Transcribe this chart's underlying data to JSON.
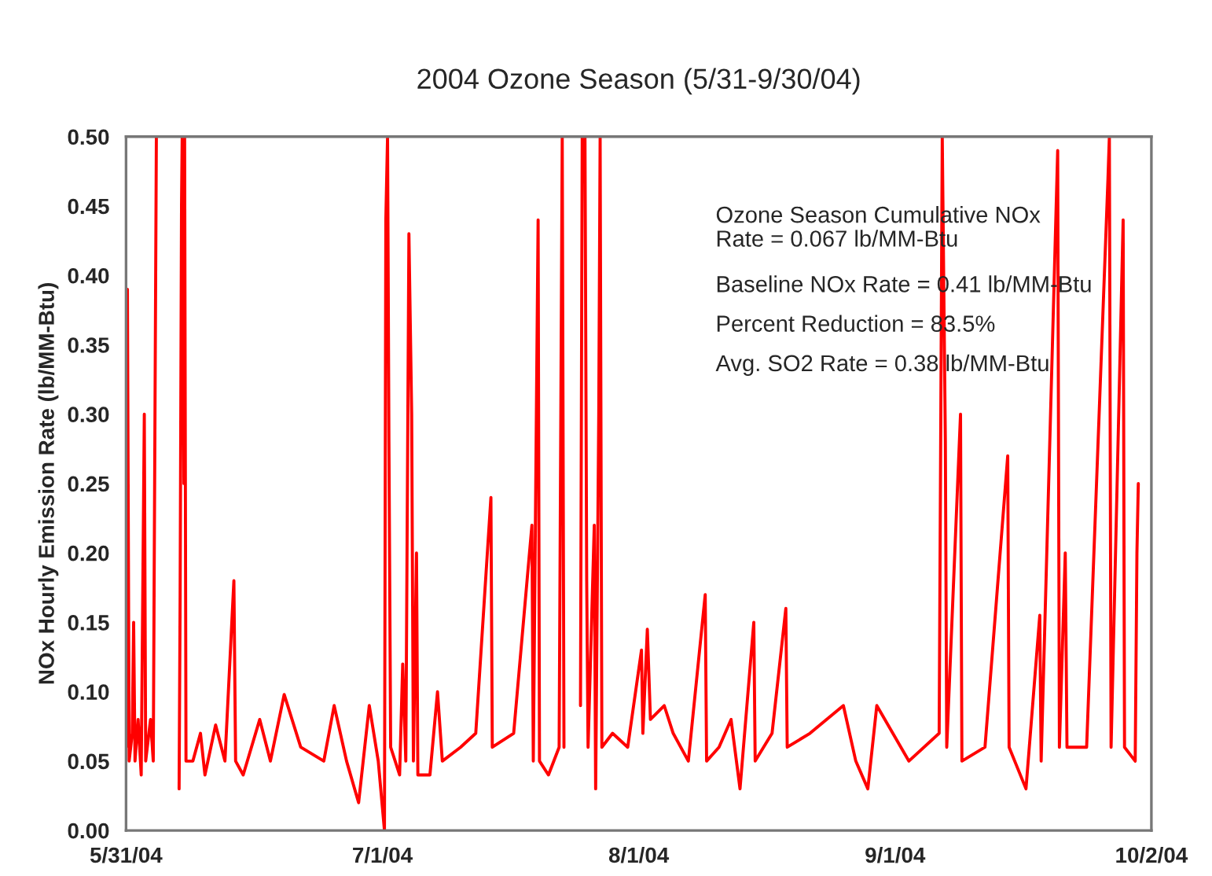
{
  "chart_data": {
    "type": "line",
    "title": "2004 Ozone Season (5/31-9/30/04)",
    "ylabel": "NOx Hourly Emission Rate (lb/MM-Btu)",
    "annotations": [
      "Ozone Season Cumulative NOx\nRate = 0.067 lb/MM-Btu",
      "Baseline NOx Rate = 0.41 lb/MM-Btu",
      "Percent Reduction = 83.5%",
      "Avg. SO2 Rate = 0.38 lb/MM-Btu"
    ],
    "xlim": [
      "2004-05-31",
      "2004-10-02"
    ],
    "xticks": [
      {
        "value": "2004-05-31",
        "label": "5/31/04"
      },
      {
        "value": "2004-07-01",
        "label": "7/1/04"
      },
      {
        "value": "2004-08-01",
        "label": "8/1/04"
      },
      {
        "value": "2004-09-01",
        "label": "9/1/04"
      },
      {
        "value": "2004-10-02",
        "label": "10/2/04"
      }
    ],
    "ylim": [
      0,
      0.5
    ],
    "yticks": [
      {
        "value": 0,
        "label": "0.00"
      },
      {
        "value": 0.05,
        "label": "0.05"
      },
      {
        "value": 0.1,
        "label": "0.10"
      },
      {
        "value": 0.15,
        "label": "0.15"
      },
      {
        "value": 0.2,
        "label": "0.20"
      },
      {
        "value": 0.25,
        "label": "0.25"
      },
      {
        "value": 0.3,
        "label": "0.30"
      },
      {
        "value": 0.35,
        "label": "0.35"
      },
      {
        "value": 0.4,
        "label": "0.40"
      },
      {
        "value": 0.45,
        "label": "0.45"
      },
      {
        "value": 0.5,
        "label": "0.50"
      }
    ],
    "grid": false,
    "legend": false,
    "marker": "none",
    "line_style": "solid",
    "series": [
      {
        "color": "#ff0000",
        "x": [
          "2004-05-31T00:00",
          "2004-05-31T04:00",
          "2004-05-31T09:00",
          "2004-05-31T18:00",
          "2004-05-31T22:00",
          "2004-06-01T02:00",
          "2004-06-01T11:00",
          "2004-06-01T20:00",
          "2004-06-02T05:00",
          "2004-06-02T09:00",
          "2004-06-02T23:00",
          "2004-06-03T07:00",
          "2004-06-03T16:00",
          "2004-06-04T00:00",
          "2004-06-06T10:00",
          "2004-06-06T13:00",
          "2004-06-06T17:00",
          "2004-06-06T19:00",
          "2004-06-07T00:00",
          "2004-06-07T02:00",
          "2004-06-07T06:00",
          "2004-06-08T02:00",
          "2004-06-09T00:00",
          "2004-06-09T13:00",
          "2004-06-10T20:00",
          "2004-06-11T23:00",
          "2004-06-13T01:00",
          "2004-06-13T06:00",
          "2004-06-14T04:00",
          "2004-06-16T04:00",
          "2004-06-17T11:00",
          "2004-06-19T03:00",
          "2004-06-21T03:00",
          "2004-06-23T22:00",
          "2004-06-25T04:00",
          "2004-06-26T16:00",
          "2004-06-28T03:00",
          "2004-06-29T10:00",
          "2004-06-30T12:00",
          "2004-07-01T06:00",
          "2004-07-01T10:00",
          "2004-07-01T15:00",
          "2004-07-01T19:00",
          "2004-07-02T00:00",
          "2004-07-03T02:00",
          "2004-07-03T11:00",
          "2004-07-03T20:00",
          "2004-07-04T05:00",
          "2004-07-04T13:00",
          "2004-07-04T18:00",
          "2004-07-05T03:00",
          "2004-07-05T07:00",
          "2004-07-06T18:00",
          "2004-07-07T16:00",
          "2004-07-08T06:00",
          "2004-07-10T11:00",
          "2004-07-12T07:00",
          "2004-07-14T03:00",
          "2004-07-14T07:00",
          "2004-07-16T21:00",
          "2004-07-19T02:00",
          "2004-07-19T06:00",
          "2004-07-19T20:00",
          "2004-07-20T00:00",
          "2004-07-21T02:00",
          "2004-07-22T09:00",
          "2004-07-22T18:00",
          "2004-07-22T23:00",
          "2004-07-24T00:00",
          "2004-07-24T23:00",
          "2004-07-25T04:00",
          "2004-07-25T12:00",
          "2004-07-25T17:00",
          "2004-07-25T21:00",
          "2004-07-26T15:00",
          "2004-07-26T19:00",
          "2004-07-27T04:00",
          "2004-07-27T08:00",
          "2004-07-27T13:00",
          "2004-07-28T20:00",
          "2004-07-30T16:00",
          "2004-08-01T08:00",
          "2004-08-01T12:00",
          "2004-08-02T01:00",
          "2004-08-02T10:00",
          "2004-08-04T02:00",
          "2004-08-05T04:00",
          "2004-08-07T00:00",
          "2004-08-09T01:00",
          "2004-08-09T05:00",
          "2004-08-10T17:00",
          "2004-08-12T04:00",
          "2004-08-13T06:00",
          "2004-08-14T22:00",
          "2004-08-15T02:00",
          "2004-08-17T03:00",
          "2004-08-18T19:00",
          "2004-08-18T23:00",
          "2004-08-21T17:00",
          "2004-08-25T18:00",
          "2004-08-27T06:00",
          "2004-08-28T17:00",
          "2004-08-29T19:00",
          "2004-09-02T16:00",
          "2004-09-06T08:00",
          "2004-09-06T17:00",
          "2004-09-07T02:00",
          "2004-09-07T06:00",
          "2004-09-08T22:00",
          "2004-09-09T02:00",
          "2004-09-11T21:00",
          "2004-09-14T15:00",
          "2004-09-14T19:00",
          "2004-09-16T20:00",
          "2004-09-18T12:00",
          "2004-09-18T16:00",
          "2004-09-20T16:00",
          "2004-09-20T21:00",
          "2004-09-21T14:00",
          "2004-09-21T19:00",
          "2004-09-24T04:00",
          "2004-09-26T18:00",
          "2004-09-26T22:00",
          "2004-09-27T03:00",
          "2004-09-28T14:00",
          "2004-09-28T18:00",
          "2004-09-30T01:00",
          "2004-09-30T06:00",
          "2004-09-30T10:00"
        ],
        "values": [
          0.06,
          0.39,
          0.05,
          0.07,
          0.15,
          0.05,
          0.08,
          0.04,
          0.3,
          0.05,
          0.08,
          0.05,
          0.5,
          null,
          0.03,
          0.17,
          0.45,
          0.5,
          0.25,
          0.5,
          0.05,
          0.05,
          0.07,
          0.04,
          0.076,
          0.05,
          0.18,
          0.05,
          0.04,
          0.08,
          0.05,
          0.098,
          0.06,
          0.05,
          0.09,
          0.05,
          0.02,
          0.09,
          0.05,
          0.0,
          0.44,
          0.5,
          0.28,
          0.06,
          0.04,
          0.12,
          0.05,
          0.43,
          0.3,
          0.05,
          0.2,
          0.04,
          0.04,
          0.1,
          0.05,
          0.06,
          0.07,
          0.24,
          0.06,
          0.07,
          0.22,
          0.05,
          0.44,
          0.05,
          0.04,
          0.06,
          0.5,
          0.06,
          null,
          0.09,
          0.5,
          0.5,
          0.18,
          0.06,
          0.22,
          0.03,
          0.3,
          0.5,
          0.06,
          0.07,
          0.06,
          0.13,
          0.07,
          0.145,
          0.08,
          0.09,
          0.07,
          0.05,
          0.17,
          0.05,
          0.06,
          0.08,
          0.03,
          0.15,
          0.05,
          0.07,
          0.16,
          0.06,
          0.07,
          0.09,
          0.05,
          0.03,
          0.09,
          0.05,
          0.07,
          0.5,
          0.28,
          0.06,
          0.3,
          0.05,
          0.06,
          0.27,
          0.06,
          0.03,
          0.155,
          0.05,
          0.49,
          0.06,
          0.2,
          0.06,
          0.06,
          0.47,
          0.5,
          0.06,
          0.44,
          0.06,
          0.05,
          0.2,
          0.25
        ]
      }
    ]
  }
}
